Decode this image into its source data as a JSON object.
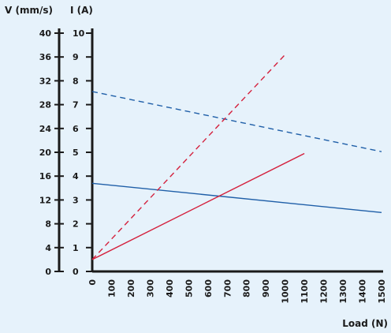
{
  "chart_data": {
    "type": "line",
    "title": "",
    "xlabel": "Load (N)",
    "ylabel_left": "V (mm/s)",
    "ylabel_right": "I (A)",
    "xlim": [
      0,
      1500
    ],
    "ylim_left": [
      0,
      40
    ],
    "ylim_right": [
      0,
      10
    ],
    "x_ticks": [
      "0",
      "100",
      "200",
      "300",
      "400",
      "500",
      "600",
      "700",
      "800",
      "900",
      "1000",
      "1100",
      "1200",
      "1300",
      "1400",
      "1500"
    ],
    "y_left_ticks": [
      "0",
      "4",
      "8",
      "12",
      "16",
      "20",
      "24",
      "28",
      "32",
      "36",
      "40"
    ],
    "y_right_ticks": [
      "0",
      "1",
      "2",
      "3",
      "4",
      "5",
      "6",
      "7",
      "8",
      "9",
      "10"
    ],
    "grid": false,
    "legend": "none",
    "series": [
      {
        "axis": "left",
        "color": "#1f5fa8",
        "dash": "solid",
        "points": [
          [
            0,
            14.8
          ],
          [
            1500,
            9.9
          ]
        ]
      },
      {
        "axis": "left",
        "color": "#1f5fa8",
        "dash": "dashed",
        "points": [
          [
            0,
            30.2
          ],
          [
            1500,
            20.1
          ]
        ]
      },
      {
        "axis": "right",
        "color": "#d4213d",
        "dash": "solid",
        "points": [
          [
            0,
            0.5
          ],
          [
            1100,
            4.95
          ]
        ]
      },
      {
        "axis": "right",
        "color": "#d4213d",
        "dash": "dashed",
        "points": [
          [
            0,
            0.5
          ],
          [
            1000,
            9.1
          ]
        ]
      }
    ]
  }
}
